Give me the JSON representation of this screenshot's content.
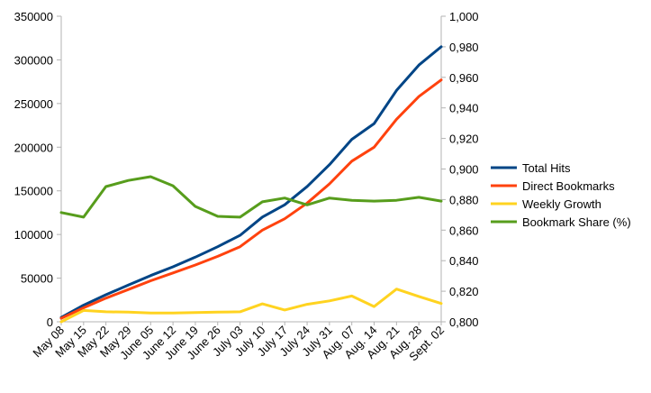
{
  "chart_data": {
    "type": "line",
    "title": "",
    "categories": [
      "May 08",
      "May 15",
      "May 22",
      "May 29",
      "June 05",
      "June 12",
      "June 19",
      "June 26",
      "July 03",
      "July 10",
      "July 17",
      "July 24",
      "July 31",
      "Aug. 07",
      "Aug. 14",
      "Aug. 21",
      "Aug. 28",
      "Sept. 02"
    ],
    "y_left": {
      "min": 0,
      "max": 350000,
      "ticks": [
        "0",
        "50000",
        "100000",
        "150000",
        "200000",
        "250000",
        "300000",
        "350000"
      ]
    },
    "y_right": {
      "min": 0.8,
      "max": 1.0,
      "ticks": [
        "0,800",
        "0,820",
        "0,840",
        "0,860",
        "0,880",
        "0,900",
        "0,920",
        "0,940",
        "0,960",
        "0,980",
        "1,000"
      ]
    },
    "legend_position": "right",
    "grid": false,
    "series": [
      {
        "name": "Total Hits",
        "axis": "left",
        "color": "#004586",
        "values": [
          5000,
          19000,
          31000,
          42000,
          53000,
          63000,
          74000,
          86000,
          99000,
          120000,
          134000,
          155000,
          180000,
          209000,
          227000,
          265000,
          294000,
          315000
        ]
      },
      {
        "name": "Direct Bookmarks",
        "axis": "left",
        "color": "#ff420e",
        "values": [
          4000,
          16000,
          27000,
          37000,
          47000,
          56000,
          65000,
          75000,
          86000,
          105000,
          118000,
          136000,
          158000,
          184000,
          200000,
          232000,
          258000,
          277000
        ]
      },
      {
        "name": "Weekly Growth",
        "axis": "left",
        "color": "#ffd320",
        "values": [
          0,
          13000,
          11500,
          11000,
          10000,
          10000,
          10500,
          11000,
          11500,
          20500,
          13500,
          20000,
          24000,
          29500,
          17500,
          37500,
          29000,
          21000
        ]
      },
      {
        "name": "Bookmark Share (%)",
        "axis": "right",
        "color": "#579d1c",
        "values": [
          0.8715,
          0.8685,
          0.8885,
          0.8925,
          0.895,
          0.889,
          0.8755,
          0.869,
          0.8685,
          0.8785,
          0.881,
          0.8765,
          0.881,
          0.8795,
          0.879,
          0.8795,
          0.8815,
          0.879
        ]
      }
    ]
  }
}
